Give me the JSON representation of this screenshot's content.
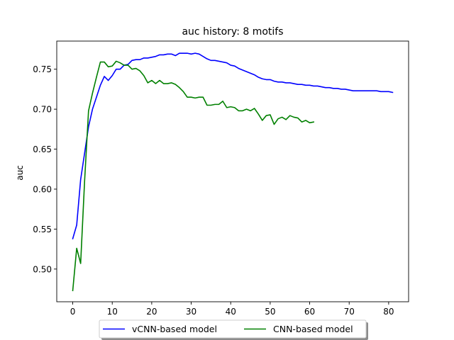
{
  "chart_data": {
    "type": "line",
    "title": "auc history:  8 motifs",
    "xlabel": "",
    "ylabel": "auc",
    "xlim": [
      -4.05,
      85.05
    ],
    "ylim": [
      0.4591,
      0.7852
    ],
    "grid": false,
    "legend_position": "bottom-center",
    "xticks": [
      0,
      10,
      20,
      30,
      40,
      50,
      60,
      70,
      80
    ],
    "yticks": [
      0.5,
      0.55,
      0.6,
      0.65,
      0.7,
      0.75
    ],
    "ytick_labels": [
      "0.50",
      "0.55",
      "0.60",
      "0.65",
      "0.70",
      "0.75"
    ],
    "series": [
      {
        "name": "vCNN-based model",
        "color": "#0000ff",
        "x": [
          0,
          1,
          2,
          3,
          4,
          5,
          6,
          7,
          8,
          9,
          10,
          11,
          12,
          13,
          14,
          15,
          16,
          17,
          18,
          19,
          20,
          21,
          22,
          23,
          24,
          25,
          26,
          27,
          28,
          29,
          30,
          31,
          32,
          33,
          34,
          35,
          36,
          37,
          38,
          39,
          40,
          41,
          42,
          43,
          44,
          45,
          46,
          47,
          48,
          49,
          50,
          51,
          52,
          53,
          54,
          55,
          56,
          57,
          58,
          59,
          60,
          61,
          62,
          63,
          64,
          65,
          66,
          67,
          68,
          69,
          70,
          71,
          72,
          73,
          74,
          75,
          76,
          77,
          78,
          79,
          80,
          81
        ],
        "y": [
          0.538,
          0.555,
          0.612,
          0.645,
          0.678,
          0.7,
          0.715,
          0.73,
          0.741,
          0.736,
          0.742,
          0.75,
          0.75,
          0.755,
          0.756,
          0.761,
          0.762,
          0.762,
          0.764,
          0.764,
          0.765,
          0.766,
          0.768,
          0.768,
          0.769,
          0.769,
          0.767,
          0.77,
          0.77,
          0.77,
          0.769,
          0.77,
          0.769,
          0.766,
          0.763,
          0.761,
          0.761,
          0.76,
          0.759,
          0.758,
          0.755,
          0.754,
          0.751,
          0.749,
          0.747,
          0.745,
          0.743,
          0.74,
          0.738,
          0.737,
          0.737,
          0.735,
          0.734,
          0.734,
          0.733,
          0.733,
          0.732,
          0.731,
          0.731,
          0.73,
          0.73,
          0.729,
          0.729,
          0.728,
          0.727,
          0.727,
          0.726,
          0.726,
          0.725,
          0.725,
          0.724,
          0.723,
          0.723,
          0.723,
          0.723,
          0.723,
          0.723,
          0.723,
          0.722,
          0.722,
          0.722,
          0.721
        ]
      },
      {
        "name": "CNN-based model",
        "color": "#008000",
        "x": [
          0,
          1,
          2,
          3,
          4,
          5,
          6,
          7,
          8,
          9,
          10,
          11,
          12,
          13,
          14,
          15,
          16,
          17,
          18,
          19,
          20,
          21,
          22,
          23,
          24,
          25,
          26,
          27,
          28,
          29,
          30,
          31,
          32,
          33,
          34,
          35,
          36,
          37,
          38,
          39,
          40,
          41,
          42,
          43,
          44,
          45,
          46,
          47,
          48,
          49,
          50,
          51,
          52,
          53,
          54,
          55,
          56,
          57,
          58,
          59,
          60,
          61
        ],
        "y": [
          0.473,
          0.526,
          0.507,
          0.61,
          0.698,
          0.72,
          0.74,
          0.759,
          0.759,
          0.753,
          0.754,
          0.76,
          0.758,
          0.755,
          0.755,
          0.75,
          0.751,
          0.748,
          0.742,
          0.733,
          0.736,
          0.732,
          0.736,
          0.732,
          0.732,
          0.733,
          0.731,
          0.727,
          0.722,
          0.715,
          0.715,
          0.714,
          0.715,
          0.715,
          0.705,
          0.705,
          0.706,
          0.706,
          0.71,
          0.702,
          0.703,
          0.702,
          0.698,
          0.698,
          0.7,
          0.698,
          0.701,
          0.694,
          0.686,
          0.692,
          0.693,
          0.681,
          0.688,
          0.69,
          0.687,
          0.692,
          0.69,
          0.689,
          0.684,
          0.686,
          0.683,
          0.684
        ]
      }
    ]
  }
}
